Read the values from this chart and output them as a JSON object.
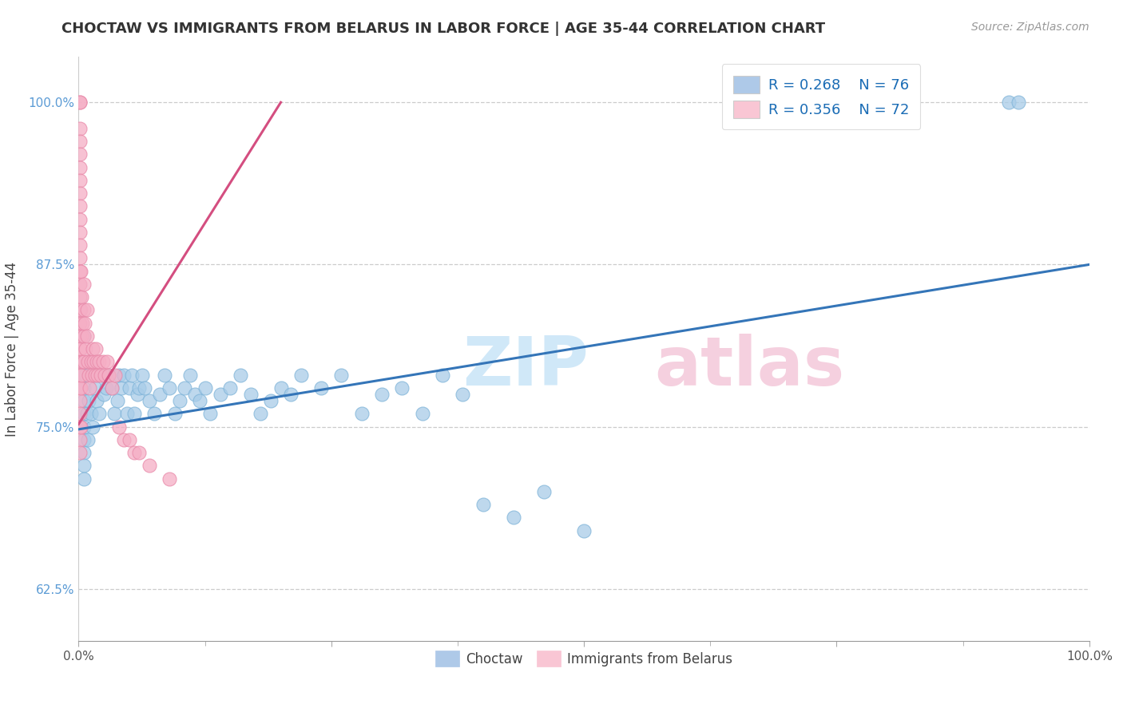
{
  "title": "CHOCTAW VS IMMIGRANTS FROM BELARUS IN LABOR FORCE | AGE 35-44 CORRELATION CHART",
  "source": "Source: ZipAtlas.com",
  "ylabel": "In Labor Force | Age 35-44",
  "x_min": 0.0,
  "x_max": 1.0,
  "y_min": 0.585,
  "y_max": 1.035,
  "x_ticks": [
    0.0,
    0.25,
    0.5,
    0.75,
    1.0
  ],
  "x_tick_labels": [
    "0.0%",
    "",
    "",
    "",
    "100.0%"
  ],
  "y_ticks": [
    0.625,
    0.75,
    0.875,
    1.0
  ],
  "y_tick_labels": [
    "62.5%",
    "75.0%",
    "87.5%",
    "100.0%"
  ],
  "legend_R1": "R = 0.268",
  "legend_N1": "N = 76",
  "legend_R2": "R = 0.356",
  "legend_N2": "N = 72",
  "blue_scatter_color": "#a8cce8",
  "blue_scatter_edge": "#7eb3d8",
  "pink_scatter_color": "#f5aec5",
  "pink_scatter_edge": "#e888a8",
  "blue_line_color": "#3475b8",
  "pink_line_color": "#d44e80",
  "blue_tick_color": "#5b9bd5",
  "watermark_zip_color": "#d0e8f8",
  "watermark_atlas_color": "#f5d0df",
  "choctaw_x": [
    0.005,
    0.005,
    0.005,
    0.005,
    0.005,
    0.005,
    0.005,
    0.005,
    0.005,
    0.005,
    0.005,
    0.007,
    0.008,
    0.009,
    0.01,
    0.01,
    0.012,
    0.014,
    0.015,
    0.016,
    0.018,
    0.02,
    0.022,
    0.025,
    0.027,
    0.03,
    0.033,
    0.035,
    0.038,
    0.04,
    0.042,
    0.045,
    0.048,
    0.05,
    0.053,
    0.055,
    0.058,
    0.06,
    0.063,
    0.065,
    0.07,
    0.075,
    0.08,
    0.085,
    0.09,
    0.095,
    0.1,
    0.105,
    0.11,
    0.115,
    0.12,
    0.125,
    0.13,
    0.14,
    0.15,
    0.16,
    0.17,
    0.18,
    0.19,
    0.2,
    0.21,
    0.22,
    0.24,
    0.26,
    0.28,
    0.3,
    0.32,
    0.34,
    0.36,
    0.38,
    0.4,
    0.43,
    0.46,
    0.5,
    0.92,
    0.93
  ],
  "choctaw_y": [
    0.82,
    0.8,
    0.79,
    0.78,
    0.77,
    0.76,
    0.75,
    0.74,
    0.73,
    0.72,
    0.71,
    0.79,
    0.76,
    0.74,
    0.8,
    0.77,
    0.76,
    0.75,
    0.79,
    0.78,
    0.77,
    0.76,
    0.79,
    0.775,
    0.78,
    0.79,
    0.78,
    0.76,
    0.77,
    0.79,
    0.78,
    0.79,
    0.76,
    0.78,
    0.79,
    0.76,
    0.775,
    0.78,
    0.79,
    0.78,
    0.77,
    0.76,
    0.775,
    0.79,
    0.78,
    0.76,
    0.77,
    0.78,
    0.79,
    0.775,
    0.77,
    0.78,
    0.76,
    0.775,
    0.78,
    0.79,
    0.775,
    0.76,
    0.77,
    0.78,
    0.775,
    0.79,
    0.78,
    0.79,
    0.76,
    0.775,
    0.78,
    0.76,
    0.79,
    0.775,
    0.69,
    0.68,
    0.7,
    0.67,
    1.0,
    1.0
  ],
  "belarus_x": [
    0.001,
    0.001,
    0.001,
    0.001,
    0.001,
    0.001,
    0.001,
    0.001,
    0.001,
    0.001,
    0.001,
    0.001,
    0.001,
    0.001,
    0.001,
    0.001,
    0.001,
    0.001,
    0.001,
    0.001,
    0.001,
    0.001,
    0.001,
    0.001,
    0.001,
    0.001,
    0.001,
    0.001,
    0.002,
    0.002,
    0.002,
    0.002,
    0.002,
    0.003,
    0.003,
    0.003,
    0.004,
    0.004,
    0.005,
    0.005,
    0.005,
    0.005,
    0.006,
    0.007,
    0.008,
    0.008,
    0.009,
    0.01,
    0.011,
    0.012,
    0.013,
    0.014,
    0.015,
    0.016,
    0.017,
    0.018,
    0.019,
    0.02,
    0.022,
    0.024,
    0.026,
    0.028,
    0.03,
    0.033,
    0.036,
    0.04,
    0.045,
    0.05,
    0.055,
    0.06,
    0.07,
    0.09
  ],
  "belarus_y": [
    1.0,
    1.0,
    0.98,
    0.97,
    0.96,
    0.95,
    0.94,
    0.93,
    0.92,
    0.91,
    0.9,
    0.89,
    0.88,
    0.87,
    0.86,
    0.85,
    0.84,
    0.83,
    0.82,
    0.81,
    0.8,
    0.79,
    0.78,
    0.77,
    0.76,
    0.75,
    0.74,
    0.73,
    0.87,
    0.84,
    0.81,
    0.78,
    0.75,
    0.85,
    0.82,
    0.79,
    0.83,
    0.8,
    0.86,
    0.84,
    0.82,
    0.8,
    0.83,
    0.81,
    0.84,
    0.82,
    0.8,
    0.79,
    0.78,
    0.8,
    0.79,
    0.81,
    0.8,
    0.79,
    0.81,
    0.8,
    0.79,
    0.8,
    0.79,
    0.8,
    0.79,
    0.8,
    0.79,
    0.78,
    0.79,
    0.75,
    0.74,
    0.74,
    0.73,
    0.73,
    0.72,
    0.71
  ],
  "blue_line_x0": 0.0,
  "blue_line_y0": 0.748,
  "blue_line_x1": 1.0,
  "blue_line_y1": 0.875,
  "pink_line_x0": 0.0,
  "pink_line_y0": 0.752,
  "pink_line_x1": 0.2,
  "pink_line_y1": 1.0
}
